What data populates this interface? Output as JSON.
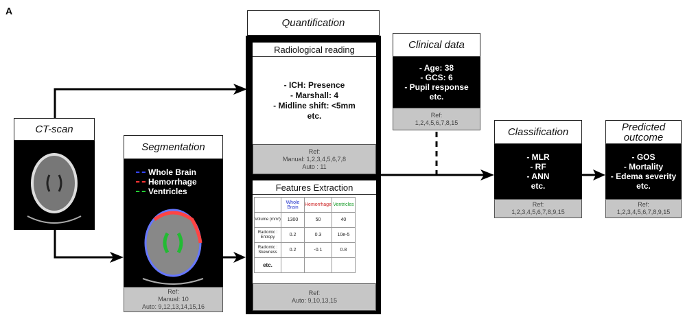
{
  "figure_label": "A",
  "ct_scan": {
    "title": "CT-scan"
  },
  "segmentation": {
    "title": "Segmentation",
    "legend": [
      "Whole Brain",
      "Hemorrhage",
      "Ventricles"
    ],
    "ref": [
      "Ref:",
      "Manual: 10",
      "Auto: 9,12,13,14,15,16"
    ]
  },
  "quantification": {
    "title": "Quantification",
    "radiological_reading": {
      "title": "Radiological reading",
      "lines": [
        "- ICH: Presence",
        "- Marshall: 4",
        "- Midline shift: <5mm",
        "etc."
      ],
      "ref": [
        "Ref:",
        "Manual: 1,2,3,4,5,6,7,8",
        "Auto : 11"
      ]
    },
    "features_extraction": {
      "title": "Features Extraction",
      "table": {
        "header": [
          "Whole Brain",
          "Hemorrhage",
          "Ventricles"
        ],
        "rows": [
          [
            "Volume (mm³)",
            "1300",
            "50",
            "40"
          ],
          [
            "Radiomic : Entropy",
            "0.2",
            "0.3",
            "10e-5"
          ],
          [
            "Radiomic : Skewness",
            "0.2",
            "-0.1",
            "0.8"
          ],
          [
            "etc."
          ]
        ]
      },
      "ref": [
        "Ref:",
        "Auto: 9,10,13,15"
      ]
    }
  },
  "clinical_data": {
    "title": "Clinical data",
    "lines": [
      "- Age: 38",
      "- GCS: 6",
      "- Pupil response",
      "etc."
    ],
    "ref": [
      "Ref:",
      "1,2,4,5,6,7,8,15"
    ]
  },
  "classification": {
    "title": "Classification",
    "lines": [
      "- MLR",
      "- RF",
      "- ANN",
      "etc."
    ],
    "ref": [
      "Ref:",
      "1,2,3,4,5,6,7,8,9,15"
    ]
  },
  "predicted_outcome": {
    "title": "Predicted outcome",
    "lines": [
      "- GOS",
      "- Mortality",
      "- Edema severity",
      "etc."
    ],
    "ref": [
      "Ref:",
      "1,2,3,4,5,6,7,8,9,15"
    ]
  }
}
